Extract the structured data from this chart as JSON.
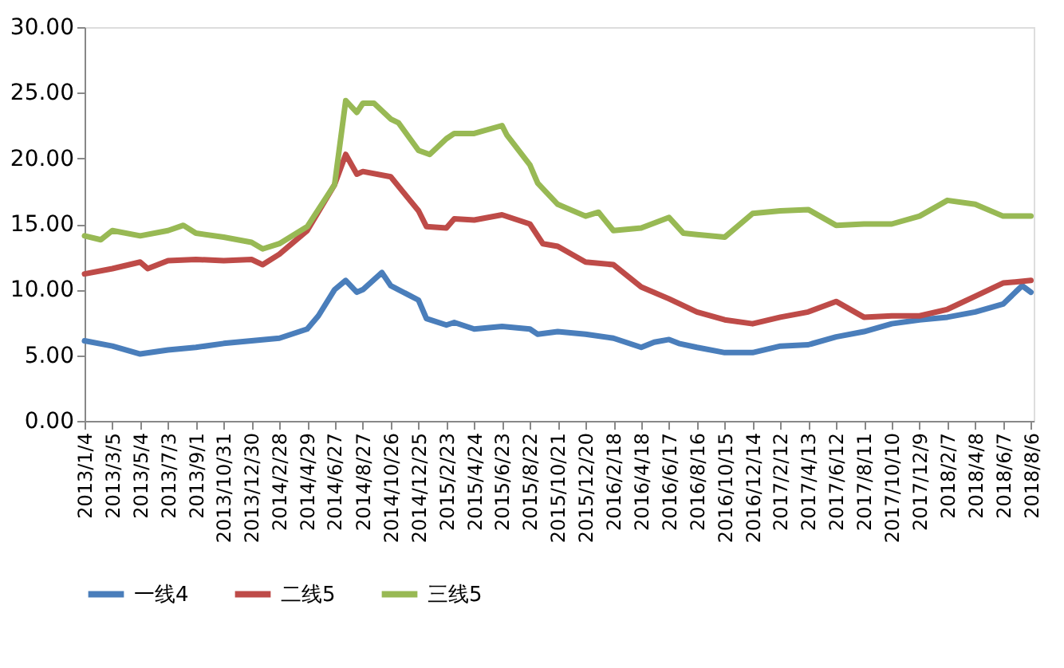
{
  "chart_data": {
    "type": "line",
    "xlim": [
      "2013-01-04",
      "2018-08-12"
    ],
    "ylim": [
      0,
      30
    ],
    "yticks": [
      {
        "value": 0,
        "label": "0.00"
      },
      {
        "value": 5,
        "label": "5.00"
      },
      {
        "value": 10,
        "label": "10.00"
      },
      {
        "value": 15,
        "label": "15.00"
      },
      {
        "value": 20,
        "label": "20.00"
      },
      {
        "value": 25,
        "label": "25.00"
      },
      {
        "value": 30,
        "label": "30.00"
      }
    ],
    "xticks": [
      {
        "value": "2013-01-04",
        "label": "2013/1/4"
      },
      {
        "value": "2013-03-05",
        "label": "2013/3/5"
      },
      {
        "value": "2013-05-04",
        "label": "2013/5/4"
      },
      {
        "value": "2013-07-03",
        "label": "2013/7/3"
      },
      {
        "value": "2013-09-01",
        "label": "2013/9/1"
      },
      {
        "value": "2013-10-31",
        "label": "2013/10/31"
      },
      {
        "value": "2013-12-30",
        "label": "2013/12/30"
      },
      {
        "value": "2014-02-28",
        "label": "2014/2/28"
      },
      {
        "value": "2014-04-29",
        "label": "2014/4/29"
      },
      {
        "value": "2014-06-27",
        "label": "2014/6/27"
      },
      {
        "value": "2014-08-27",
        "label": "2014/8/27"
      },
      {
        "value": "2014-10-26",
        "label": "2014/10/26"
      },
      {
        "value": "2014-12-25",
        "label": "2014/12/25"
      },
      {
        "value": "2015-02-23",
        "label": "2015/2/23"
      },
      {
        "value": "2015-04-24",
        "label": "2015/4/24"
      },
      {
        "value": "2015-06-23",
        "label": "2015/6/23"
      },
      {
        "value": "2015-08-22",
        "label": "2015/8/22"
      },
      {
        "value": "2015-10-21",
        "label": "2015/10/21"
      },
      {
        "value": "2015-12-20",
        "label": "2015/12/20"
      },
      {
        "value": "2016-02-18",
        "label": "2016/2/18"
      },
      {
        "value": "2016-04-18",
        "label": "2016/4/18"
      },
      {
        "value": "2016-06-17",
        "label": "2016/6/17"
      },
      {
        "value": "2016-08-16",
        "label": "2016/8/16"
      },
      {
        "value": "2016-10-15",
        "label": "2016/10/15"
      },
      {
        "value": "2016-12-14",
        "label": "2016/12/14"
      },
      {
        "value": "2017-02-12",
        "label": "2017/2/12"
      },
      {
        "value": "2017-04-13",
        "label": "2017/4/13"
      },
      {
        "value": "2017-06-12",
        "label": "2017/6/12"
      },
      {
        "value": "2017-08-11",
        "label": "2017/8/11"
      },
      {
        "value": "2017-10-10",
        "label": "2017/10/10"
      },
      {
        "value": "2017-12-09",
        "label": "2017/12/9"
      },
      {
        "value": "2018-02-07",
        "label": "2018/2/7"
      },
      {
        "value": "2018-04-08",
        "label": "2018/4/8"
      },
      {
        "value": "2018-06-07",
        "label": "2018/6/7"
      },
      {
        "value": "2018-08-06",
        "label": "2018/8/6"
      }
    ],
    "grid": false,
    "legend": "bottom",
    "marker": "none",
    "line_style": "solid",
    "series": [
      {
        "name": "一线4",
        "color": "#4a7ebb",
        "x": [
          "2013-01-04",
          "2013-03-05",
          "2013-05-04",
          "2013-07-03",
          "2013-09-01",
          "2013-10-31",
          "2013-12-30",
          "2014-02-28",
          "2014-04-29",
          "2014-05-23",
          "2014-06-27",
          "2014-07-21",
          "2014-08-14",
          "2014-08-27",
          "2014-10-07",
          "2014-10-26",
          "2014-12-25",
          "2015-01-11",
          "2015-02-23",
          "2015-03-12",
          "2015-04-24",
          "2015-06-23",
          "2015-08-22",
          "2015-09-08",
          "2015-10-21",
          "2015-12-20",
          "2016-02-18",
          "2016-04-18",
          "2016-05-16",
          "2016-06-17",
          "2016-07-08",
          "2016-08-16",
          "2016-10-15",
          "2016-12-14",
          "2017-02-12",
          "2017-04-13",
          "2017-06-12",
          "2017-08-11",
          "2017-10-10",
          "2017-12-09",
          "2018-02-07",
          "2018-04-08",
          "2018-06-07",
          "2018-07-18",
          "2018-08-06"
        ],
        "values": [
          6.1,
          5.7,
          5.1,
          5.4,
          5.6,
          5.9,
          6.1,
          6.3,
          7.0,
          8.0,
          10.0,
          10.7,
          9.8,
          10.0,
          11.3,
          10.3,
          9.2,
          7.8,
          7.3,
          7.5,
          7.0,
          7.2,
          7.0,
          6.6,
          6.8,
          6.6,
          6.3,
          5.6,
          6.0,
          6.2,
          5.9,
          5.6,
          5.2,
          5.2,
          5.7,
          5.8,
          6.4,
          6.8,
          7.4,
          7.7,
          7.9,
          8.3,
          8.9,
          10.3,
          9.8
        ]
      },
      {
        "name": "二线5",
        "color": "#be4b48",
        "x": [
          "2013-01-04",
          "2013-03-05",
          "2013-05-04",
          "2013-05-20",
          "2013-07-03",
          "2013-09-01",
          "2013-10-31",
          "2013-12-30",
          "2014-01-23",
          "2014-02-28",
          "2014-04-29",
          "2014-06-27",
          "2014-07-21",
          "2014-08-14",
          "2014-08-27",
          "2014-10-26",
          "2014-12-25",
          "2015-01-11",
          "2015-02-23",
          "2015-03-12",
          "2015-04-24",
          "2015-06-23",
          "2015-08-22",
          "2015-09-19",
          "2015-10-21",
          "2015-12-20",
          "2016-02-18",
          "2016-04-18",
          "2016-06-17",
          "2016-08-16",
          "2016-10-15",
          "2016-12-14",
          "2017-02-12",
          "2017-04-13",
          "2017-06-12",
          "2017-08-11",
          "2017-10-10",
          "2017-12-09",
          "2018-02-07",
          "2018-04-08",
          "2018-06-07",
          "2018-08-06"
        ],
        "values": [
          11.2,
          11.6,
          12.1,
          11.6,
          12.2,
          12.3,
          12.2,
          12.3,
          11.9,
          12.7,
          14.5,
          18.0,
          20.3,
          18.8,
          19.0,
          18.6,
          16.0,
          14.8,
          14.7,
          15.4,
          15.3,
          15.7,
          15.0,
          13.5,
          13.3,
          12.1,
          11.9,
          10.2,
          9.3,
          8.3,
          7.7,
          7.4,
          7.9,
          8.3,
          9.1,
          7.9,
          8.0,
          8.0,
          8.5,
          9.5,
          10.5,
          10.7
        ]
      },
      {
        "name": "三线5",
        "color": "#98b954",
        "x": [
          "2013-01-04",
          "2013-02-08",
          "2013-03-05",
          "2013-05-04",
          "2013-07-03",
          "2013-08-05",
          "2013-09-01",
          "2013-10-31",
          "2013-12-30",
          "2014-01-23",
          "2014-02-28",
          "2014-04-29",
          "2014-06-27",
          "2014-07-21",
          "2014-08-14",
          "2014-08-27",
          "2014-09-20",
          "2014-10-26",
          "2014-11-12",
          "2014-12-25",
          "2015-01-18",
          "2015-02-23",
          "2015-03-12",
          "2015-04-24",
          "2015-06-23",
          "2015-07-03",
          "2015-08-22",
          "2015-09-08",
          "2015-10-21",
          "2015-12-20",
          "2016-01-17",
          "2016-02-18",
          "2016-04-18",
          "2016-06-17",
          "2016-07-18",
          "2016-08-16",
          "2016-10-15",
          "2016-12-14",
          "2017-02-12",
          "2017-04-13",
          "2017-06-12",
          "2017-08-11",
          "2017-10-10",
          "2017-12-09",
          "2018-02-07",
          "2018-04-08",
          "2018-06-07",
          "2018-08-06"
        ],
        "values": [
          14.1,
          13.8,
          14.5,
          14.1,
          14.5,
          14.9,
          14.3,
          14.0,
          13.6,
          13.1,
          13.5,
          14.8,
          18.0,
          24.4,
          23.5,
          24.2,
          24.2,
          23.0,
          22.7,
          20.6,
          20.3,
          21.5,
          21.9,
          21.9,
          22.5,
          21.8,
          19.5,
          18.1,
          16.5,
          15.6,
          15.9,
          14.5,
          14.7,
          15.5,
          14.3,
          14.2,
          14.0,
          15.8,
          16.0,
          16.1,
          14.9,
          15.0,
          15.0,
          15.6,
          16.8,
          16.5,
          15.6,
          15.6
        ]
      }
    ]
  }
}
